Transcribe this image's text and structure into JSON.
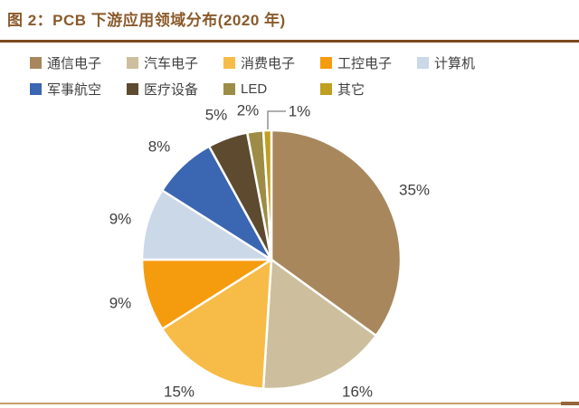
{
  "header": {
    "title": "图 2：PCB 下游应用领域分布(2020 年)"
  },
  "chart_data": {
    "type": "pie",
    "title": "PCB 下游应用领域分布(2020 年)",
    "value_suffix": "%",
    "legend_position": "top",
    "start_angle_deg": 0,
    "direction": "clockwise",
    "slices": [
      {
        "label": "通信电子",
        "value": 35,
        "color": "#A8875C"
      },
      {
        "label": "汽车电子",
        "value": 16,
        "color": "#CDBF9D"
      },
      {
        "label": "消费电子",
        "value": 15,
        "color": "#F7BC47"
      },
      {
        "label": "工控电子",
        "value": 9,
        "color": "#F59B0E"
      },
      {
        "label": "计算机",
        "value": 9,
        "color": "#CBD8E8"
      },
      {
        "label": "军事航空",
        "value": 8,
        "color": "#3A66B2"
      },
      {
        "label": "医疗设备",
        "value": 5,
        "color": "#5D4A2F"
      },
      {
        "label": "LED",
        "value": 2,
        "color": "#9C8C46"
      },
      {
        "label": "其它",
        "value": 1,
        "color": "#C09E21"
      }
    ],
    "colors": {
      "title_text": "#8A5A2B",
      "divider": "#7B4A1E",
      "labels": "#404040",
      "slice_border": "#FFFFFF",
      "bottom_line": "#C49F66"
    }
  }
}
